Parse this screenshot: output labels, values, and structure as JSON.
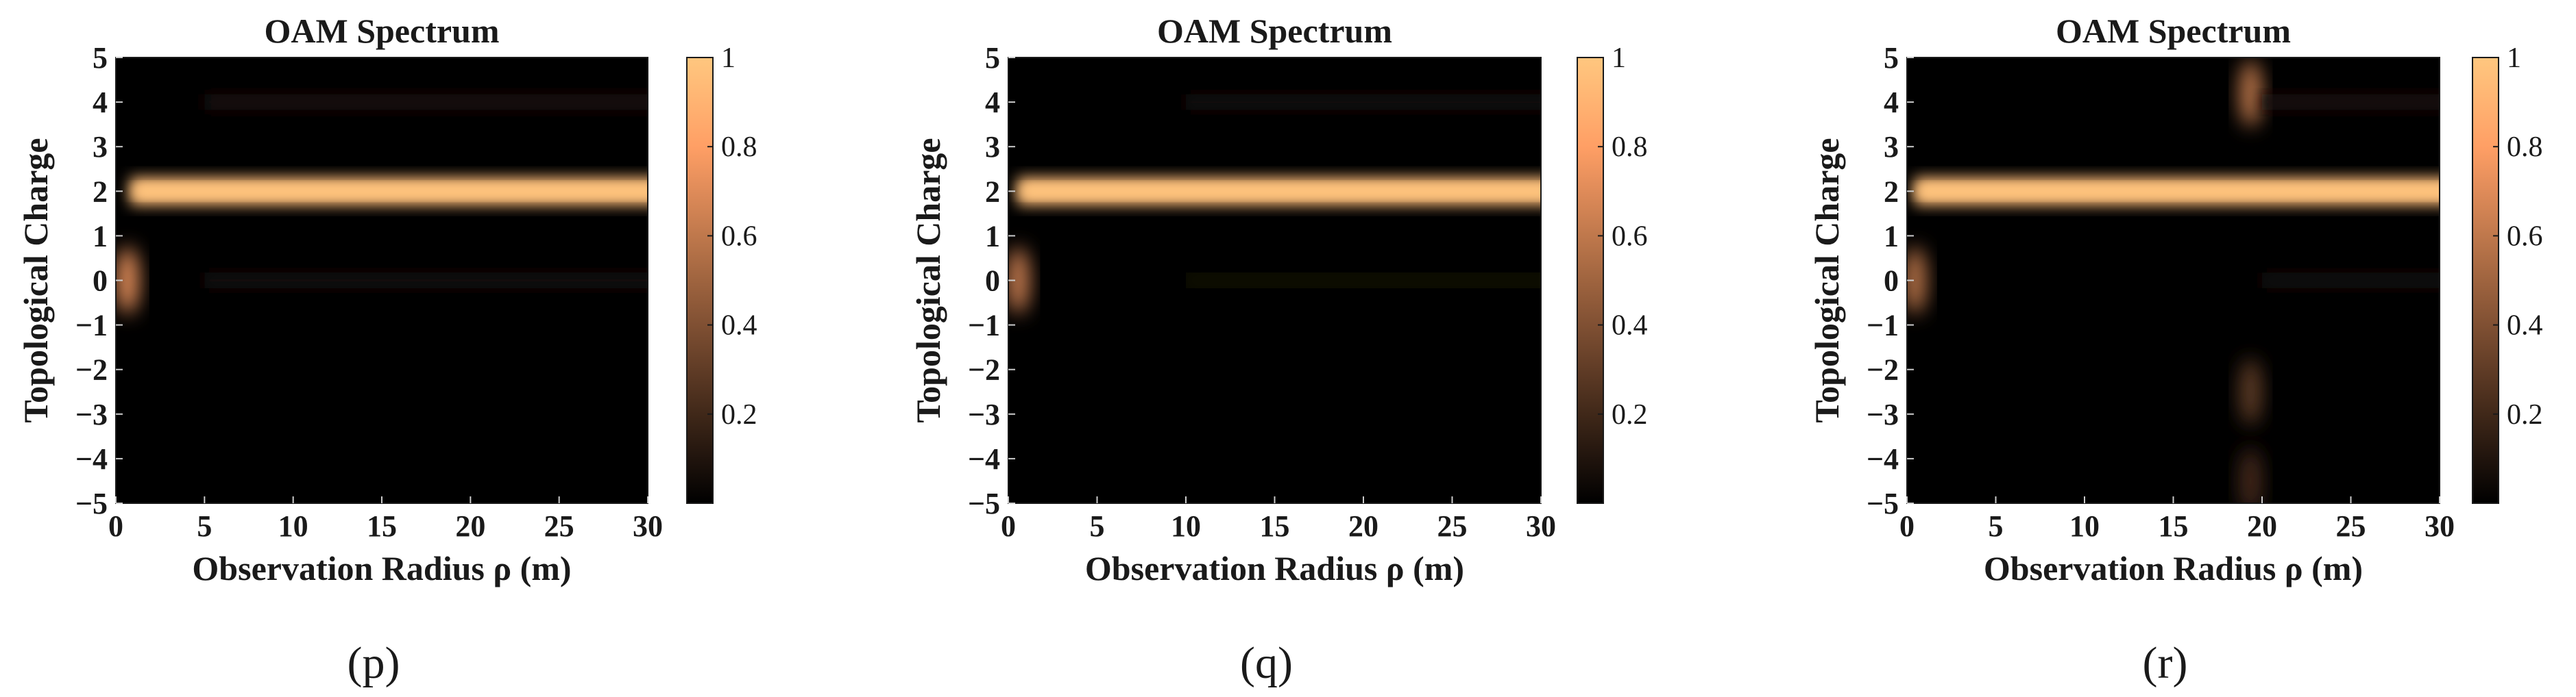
{
  "figure": {
    "colors": {
      "background": "#ffffff",
      "text": "#1a1a1a",
      "axis": "#1a1a1a"
    }
  },
  "chart_data": [
    {
      "type": "heatmap",
      "title": "OAM Spectrum",
      "xlabel": "Observation Radius ρ (m)",
      "ylabel": "Topological Charge",
      "panel_label": "(p)",
      "xlim": [
        0,
        30
      ],
      "ylim": [
        -5,
        5
      ],
      "xticks": [
        "0",
        "5",
        "10",
        "15",
        "20",
        "25",
        "30"
      ],
      "yticks": [
        "5",
        "4",
        "3",
        "2",
        "1",
        "0",
        "−1",
        "−2",
        "−3",
        "−4",
        "−5"
      ],
      "colorbar": {
        "range": [
          0,
          1
        ],
        "ticks": [
          "1",
          "0.8",
          "0.6",
          "0.4",
          "0.2"
        ],
        "colormap": "copper"
      },
      "features": [
        {
          "kind": "band",
          "charge": 2,
          "x_from": 0.8,
          "x_to": 30,
          "intensity": 0.95
        },
        {
          "kind": "blob",
          "charge": 0,
          "x": 0.5,
          "intensity": 0.75
        },
        {
          "kind": "faint_band",
          "charge": 4,
          "x_from": 5,
          "x_to": 30,
          "intensity": 0.08
        },
        {
          "kind": "faint_band",
          "charge": 0,
          "x_from": 5,
          "x_to": 30,
          "intensity": 0.07
        }
      ]
    },
    {
      "type": "heatmap",
      "title": "OAM Spectrum",
      "xlabel": "Observation Radius ρ (m)",
      "ylabel": "Topological Charge",
      "panel_label": "(q)",
      "xlim": [
        0,
        30
      ],
      "ylim": [
        -5,
        5
      ],
      "xticks": [
        "0",
        "5",
        "10",
        "15",
        "20",
        "25",
        "30"
      ],
      "yticks": [
        "5",
        "4",
        "3",
        "2",
        "1",
        "0",
        "−1",
        "−2",
        "−3",
        "−4",
        "−5"
      ],
      "colorbar": {
        "range": [
          0,
          1
        ],
        "ticks": [
          "1",
          "0.8",
          "0.6",
          "0.4",
          "0.2"
        ],
        "colormap": "copper"
      },
      "features": [
        {
          "kind": "band",
          "charge": 2,
          "x_from": 0.5,
          "x_to": 30,
          "intensity": 0.95
        },
        {
          "kind": "blob",
          "charge": 0,
          "x": 0.4,
          "intensity": 0.65
        },
        {
          "kind": "faint_band",
          "charge": 4,
          "x_from": 10,
          "x_to": 30,
          "intensity": 0.06
        },
        {
          "kind": "faint_band",
          "charge": 0,
          "x_from": 10,
          "x_to": 30,
          "intensity": 0.05
        }
      ]
    },
    {
      "type": "heatmap",
      "title": "OAM Spectrum",
      "xlabel": "Observation Radius ρ (m)",
      "ylabel": "Topological Charge",
      "panel_label": "(r)",
      "xlim": [
        0,
        30
      ],
      "ylim": [
        -5,
        5
      ],
      "xticks": [
        "0",
        "5",
        "10",
        "15",
        "20",
        "25",
        "30"
      ],
      "yticks": [
        "5",
        "4",
        "3",
        "2",
        "1",
        "0",
        "−1",
        "−2",
        "−3",
        "−4",
        "−5"
      ],
      "colorbar": {
        "range": [
          0,
          1
        ],
        "ticks": [
          "1",
          "0.8",
          "0.6",
          "0.4",
          "0.2"
        ],
        "colormap": "copper"
      },
      "features": [
        {
          "kind": "band",
          "charge": 2,
          "x_from": 0.4,
          "x_to": 30,
          "intensity": 0.95
        },
        {
          "kind": "blob",
          "charge": 0,
          "x": 0.3,
          "intensity": 0.6
        },
        {
          "kind": "blob",
          "charge": 4.2,
          "x": 19.2,
          "intensity": 0.6
        },
        {
          "kind": "blob",
          "charge": -2.5,
          "x": 19.2,
          "intensity": 0.3
        },
        {
          "kind": "blob",
          "charge": -4.5,
          "x": 19.2,
          "intensity": 0.22
        },
        {
          "kind": "faint_band",
          "charge": 4,
          "x_from": 20,
          "x_to": 30,
          "intensity": 0.08
        },
        {
          "kind": "faint_band",
          "charge": 0,
          "x_from": 20,
          "x_to": 30,
          "intensity": 0.06
        }
      ]
    }
  ]
}
